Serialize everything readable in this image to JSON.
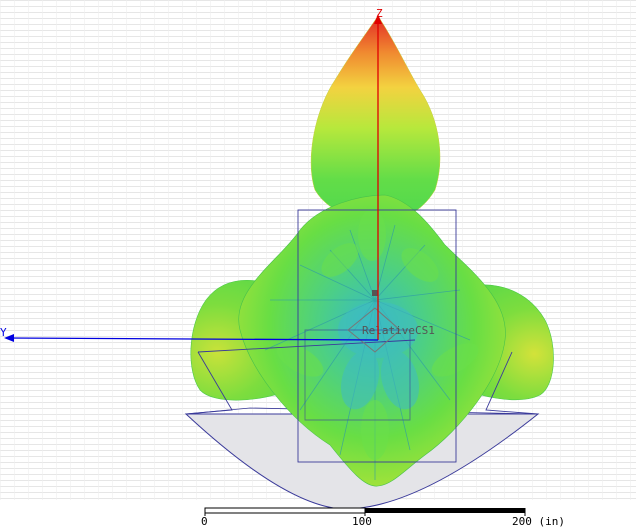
{
  "axes": {
    "z_label": "Z",
    "y_label": "Y",
    "z_color": "#e00000",
    "y_color": "#0000e0"
  },
  "coordinate_system_label": "RelativeCS1",
  "scale_bar": {
    "tick_0": "0",
    "tick_1": "100",
    "tick_2": "200 (in)"
  },
  "colors": {
    "background_lines": "#e8e8e8",
    "pattern_peak": "#e8312a",
    "pattern_high": "#f5c842",
    "pattern_mid": "#9be83a",
    "pattern_main": "#5ee04a",
    "pattern_low": "#3cc8a8",
    "pattern_min": "#2a9fd0",
    "geometry_outline": "#3a3a9a"
  }
}
